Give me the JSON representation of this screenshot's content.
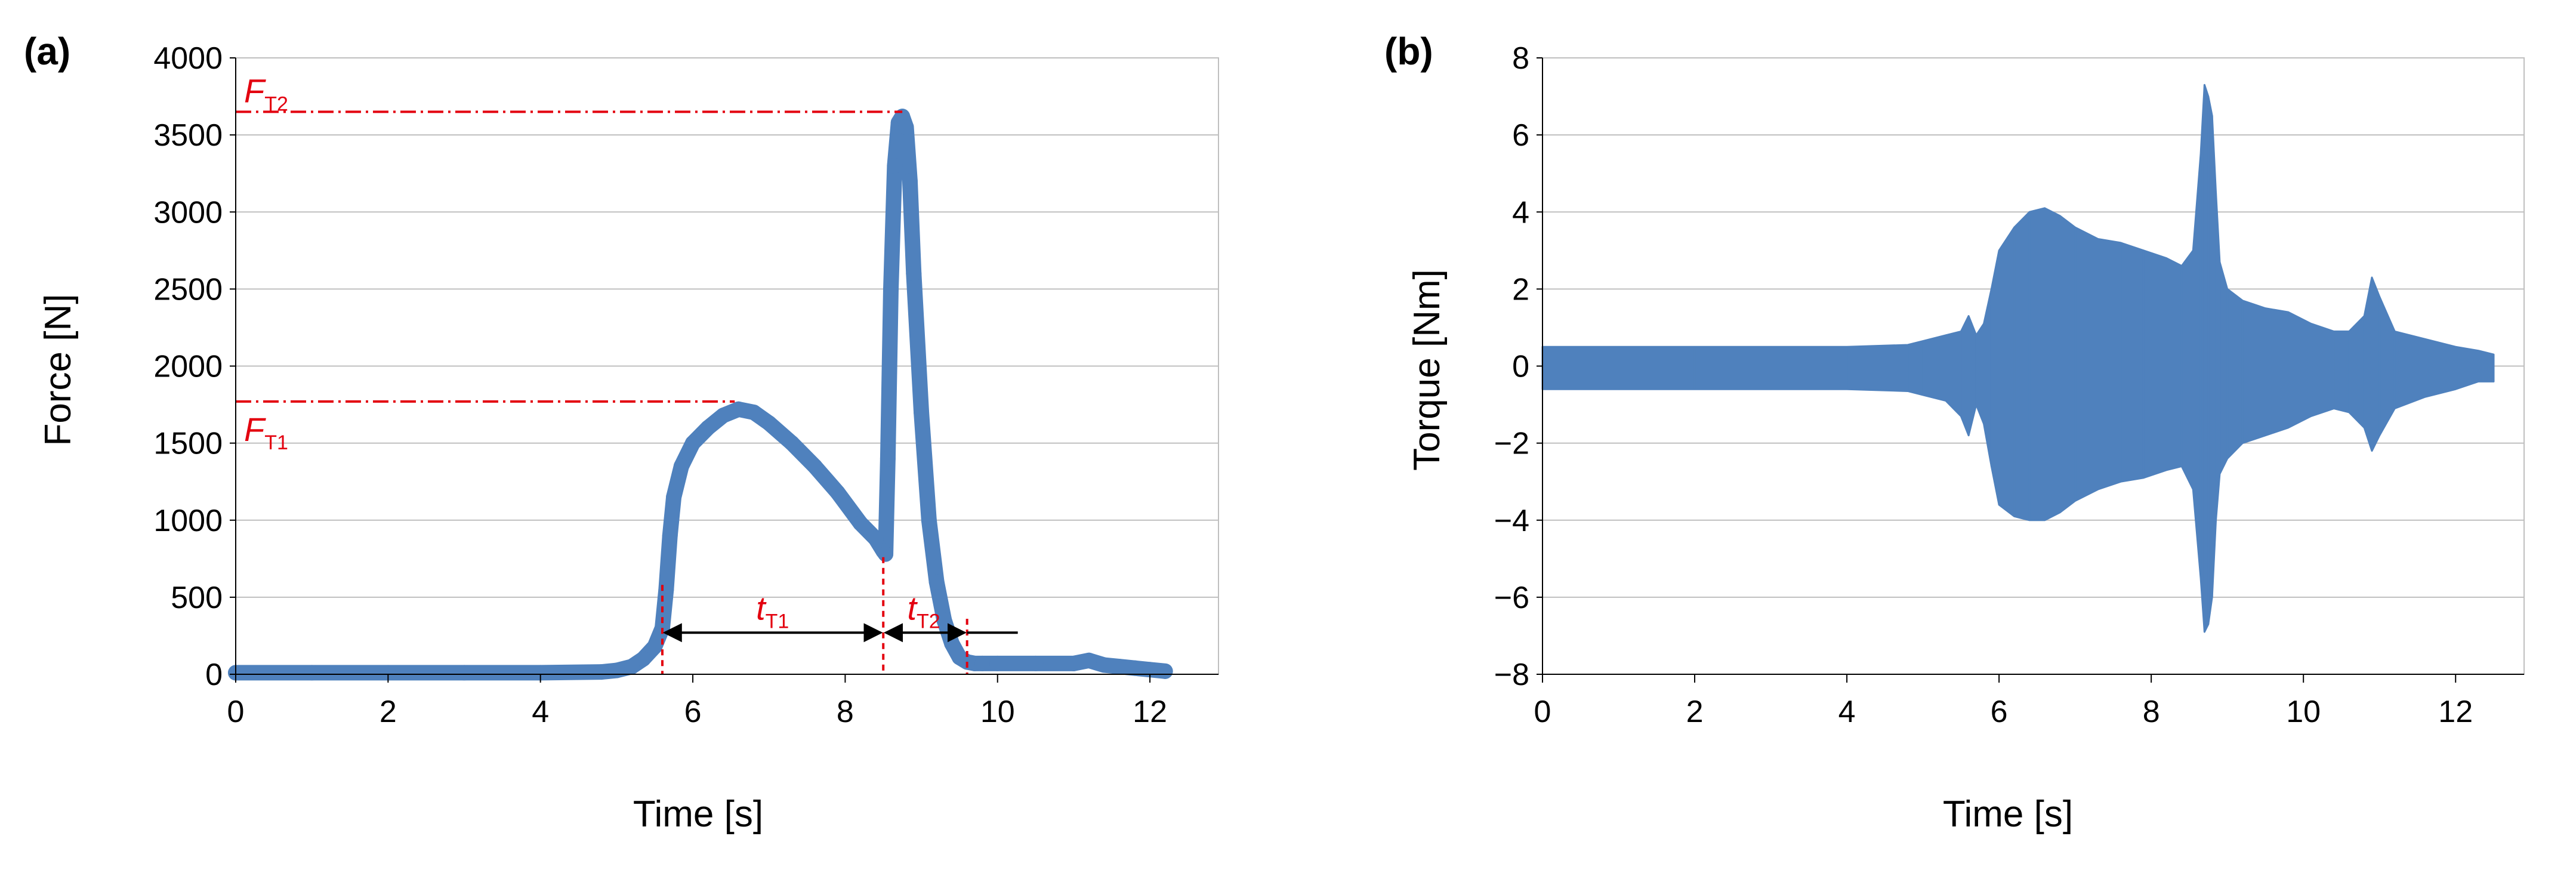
{
  "figure": {
    "colors": {
      "series": "#4f81bd",
      "grid": "#bfbfbf",
      "annotation": "#e3000f",
      "arrow": "#000000"
    }
  },
  "chart_data": [
    {
      "type": "line",
      "panel_label": "(a)",
      "xlabel": "Time [s]",
      "ylabel": "Force [N]",
      "xlim": [
        0,
        12.9
      ],
      "ylim": [
        0,
        4000
      ],
      "x_ticks": [
        0,
        2,
        4,
        6,
        8,
        10,
        12
      ],
      "y_ticks": [
        0,
        500,
        1000,
        1500,
        2000,
        2500,
        3000,
        3500,
        4000
      ],
      "grid": "horizontal",
      "series": [
        {
          "x": [
            0,
            1,
            2,
            3,
            4,
            4.8,
            5.0,
            5.2,
            5.35,
            5.5,
            5.6,
            5.65,
            5.7,
            5.75,
            5.85,
            6.0,
            6.2,
            6.4,
            6.6,
            6.8,
            7.0,
            7.3,
            7.6,
            7.9,
            8.2,
            8.4,
            8.5,
            8.53,
            8.56,
            8.6,
            8.65,
            8.7,
            8.75,
            8.8,
            8.85,
            8.9,
            9.0,
            9.1,
            9.2,
            9.3,
            9.4,
            9.5,
            9.6,
            9.7,
            9.8,
            10.0,
            10.5,
            11.0,
            11.2,
            11.4,
            11.6,
            11.8,
            12.0,
            12.2
          ],
          "y": [
            10,
            10,
            10,
            10,
            10,
            15,
            25,
            50,
            100,
            180,
            300,
            550,
            900,
            1150,
            1350,
            1500,
            1600,
            1680,
            1720,
            1700,
            1630,
            1500,
            1350,
            1180,
            980,
            880,
            800,
            780,
            1400,
            2500,
            3300,
            3580,
            3620,
            3550,
            3200,
            2600,
            1700,
            1000,
            600,
            350,
            200,
            110,
            80,
            70,
            70,
            70,
            70,
            70,
            90,
            60,
            50,
            40,
            30,
            20
          ]
        }
      ],
      "annotations": {
        "ft2": {
          "base": "F",
          "sub": "T2",
          "value": 3650,
          "x_end": 8.75
        },
        "ft1": {
          "base": "F",
          "sub": "T1",
          "value": 1770,
          "x_end": 6.55
        },
        "tt1": {
          "base": "t",
          "sub": "T1",
          "x_start": 5.6,
          "x_end": 8.5,
          "y": 270
        },
        "tt2": {
          "base": "t",
          "sub": "T2",
          "x_start": 8.5,
          "x_end": 9.6,
          "y": 270
        }
      }
    },
    {
      "type": "line",
      "panel_label": "(b)",
      "xlabel": "Time [s]",
      "ylabel": "Torque [Nm]",
      "xlim": [
        0,
        12.9
      ],
      "ylim": [
        -8,
        8
      ],
      "x_ticks": [
        0,
        2,
        4,
        6,
        8,
        10,
        12
      ],
      "y_ticks": [
        -8,
        -6,
        -4,
        -2,
        0,
        2,
        4,
        6,
        8
      ],
      "y_tick_labels": [
        "−8",
        "−6",
        "−4",
        "−2",
        "0",
        "2",
        "4",
        "6",
        "8"
      ],
      "grid": "horizontal",
      "series": [
        {
          "x": [
            0,
            1,
            2,
            3,
            4,
            4.8,
            5.0,
            5.3,
            5.5,
            5.6,
            5.7,
            5.8,
            5.9,
            6.0,
            6.2,
            6.4,
            6.6,
            6.8,
            7.0,
            7.3,
            7.6,
            7.9,
            8.2,
            8.4,
            8.55,
            8.65,
            8.7,
            8.75,
            8.8,
            8.85,
            8.9,
            9.0,
            9.2,
            9.5,
            9.8,
            10.1,
            10.4,
            10.6,
            10.8,
            10.9,
            11.0,
            11.2,
            11.6,
            12.0,
            12.3,
            12.5
          ],
          "y_upper": [
            0.5,
            0.5,
            0.5,
            0.5,
            0.5,
            0.55,
            0.65,
            0.8,
            0.9,
            1.3,
            0.8,
            1.1,
            2.0,
            3.0,
            3.6,
            4.0,
            4.1,
            3.9,
            3.6,
            3.3,
            3.2,
            3.0,
            2.8,
            2.6,
            3.0,
            5.5,
            7.3,
            7.0,
            6.5,
            4.5,
            2.7,
            2.0,
            1.7,
            1.5,
            1.4,
            1.1,
            0.9,
            0.9,
            1.3,
            2.3,
            1.8,
            0.9,
            0.7,
            0.5,
            0.4,
            0.3
          ],
          "y_lower": [
            -0.6,
            -0.6,
            -0.6,
            -0.6,
            -0.6,
            -0.65,
            -0.75,
            -0.9,
            -1.3,
            -1.8,
            -1.0,
            -1.5,
            -2.6,
            -3.6,
            -3.9,
            -4.0,
            -4.0,
            -3.8,
            -3.5,
            -3.2,
            -3.0,
            -2.9,
            -2.7,
            -2.6,
            -3.2,
            -5.5,
            -6.9,
            -6.7,
            -6.0,
            -4.0,
            -2.8,
            -2.4,
            -2.0,
            -1.8,
            -1.6,
            -1.3,
            -1.1,
            -1.2,
            -1.6,
            -2.2,
            -1.8,
            -1.1,
            -0.8,
            -0.6,
            -0.4,
            -0.4
          ]
        }
      ]
    }
  ]
}
